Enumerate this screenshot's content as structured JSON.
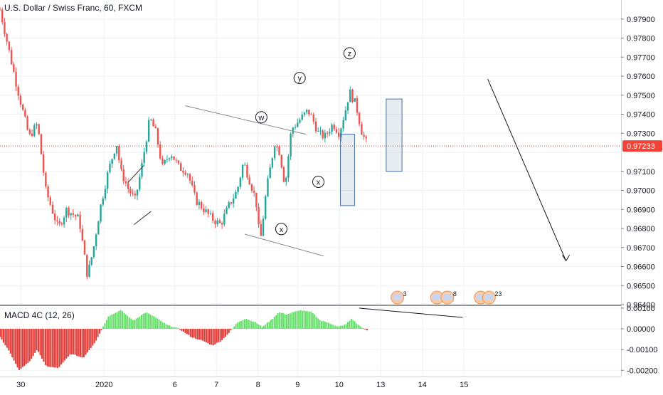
{
  "header": {
    "title": "U.S. Dollar / Swiss Franc, 60, FXCM"
  },
  "macd": {
    "title": "MACD 4C (12, 26)"
  },
  "colors": {
    "up": "#26a69a",
    "down": "#ef5350",
    "macd_pos": "#66e06a",
    "macd_neg": "#e53935",
    "price_badge": "#f44336",
    "grid": "#eef0f3"
  },
  "chart_data": [
    {
      "type": "candlestick",
      "title": "U.S. Dollar / Swiss Franc, 60, FXCM",
      "ylim": [
        0.964,
        0.98
      ],
      "y_ticks": [
        "0.97900",
        "0.97800",
        "0.97700",
        "0.97600",
        "0.97500",
        "0.97400",
        "0.97300",
        "0.97200",
        "0.97100",
        "0.97000",
        "0.96900",
        "0.96800",
        "0.96700",
        "0.96600",
        "0.96500",
        "0.96400"
      ],
      "x_ticks": [
        {
          "label": "30",
          "t": 0.05
        },
        {
          "label": "2020",
          "t": 0.25
        },
        {
          "label": "6",
          "t": 0.42
        },
        {
          "label": "7",
          "t": 0.52
        },
        {
          "label": "8",
          "t": 0.62
        },
        {
          "label": "9",
          "t": 0.715
        },
        {
          "label": "10",
          "t": 0.815
        },
        {
          "label": "13",
          "t": 0.915
        },
        {
          "label": "14",
          "t": 1.015
        },
        {
          "label": "15",
          "t": 1.115
        }
      ],
      "last_price": "0.97233",
      "close_path": [
        [
          0.0,
          0.9795
        ],
        [
          0.02,
          0.9775
        ],
        [
          0.04,
          0.9755
        ],
        [
          0.07,
          0.9728
        ],
        [
          0.09,
          0.9735
        ],
        [
          0.11,
          0.97
        ],
        [
          0.14,
          0.968
        ],
        [
          0.16,
          0.969
        ],
        [
          0.19,
          0.9685
        ],
        [
          0.21,
          0.9655
        ],
        [
          0.225,
          0.967
        ],
        [
          0.24,
          0.969
        ],
        [
          0.26,
          0.971
        ],
        [
          0.28,
          0.9725
        ],
        [
          0.29,
          0.971
        ],
        [
          0.31,
          0.97
        ],
        [
          0.325,
          0.9695
        ],
        [
          0.34,
          0.9712
        ],
        [
          0.36,
          0.9738
        ],
        [
          0.375,
          0.973
        ],
        [
          0.39,
          0.9712
        ],
        [
          0.41,
          0.972
        ],
        [
          0.43,
          0.9712
        ],
        [
          0.45,
          0.971
        ],
        [
          0.47,
          0.9695
        ],
        [
          0.49,
          0.969
        ],
        [
          0.51,
          0.9685
        ],
        [
          0.53,
          0.9682
        ],
        [
          0.55,
          0.9692
        ],
        [
          0.57,
          0.97
        ],
        [
          0.585,
          0.9715
        ],
        [
          0.6,
          0.9705
        ],
        [
          0.615,
          0.9695
        ],
        [
          0.625,
          0.9672
        ],
        [
          0.64,
          0.97
        ],
        [
          0.66,
          0.9725
        ],
        [
          0.672,
          0.972
        ],
        [
          0.685,
          0.9702
        ],
        [
          0.7,
          0.9732
        ],
        [
          0.72,
          0.9737
        ],
        [
          0.74,
          0.9742
        ],
        [
          0.75,
          0.9738
        ],
        [
          0.765,
          0.973
        ],
        [
          0.78,
          0.9728
        ],
        [
          0.8,
          0.9735
        ],
        [
          0.815,
          0.973
        ],
        [
          0.83,
          0.9742
        ],
        [
          0.84,
          0.9752
        ],
        [
          0.855,
          0.9745
        ],
        [
          0.87,
          0.973
        ],
        [
          0.885,
          0.9723
        ]
      ],
      "macd_path": [
        [
          0.0,
          -0.0004
        ],
        [
          0.02,
          -0.001
        ],
        [
          0.045,
          -0.002
        ],
        [
          0.07,
          -0.0016
        ],
        [
          0.09,
          -0.001
        ],
        [
          0.11,
          -0.0018
        ],
        [
          0.14,
          -0.0019
        ],
        [
          0.17,
          -0.0012
        ],
        [
          0.2,
          -0.0014
        ],
        [
          0.23,
          -0.0006
        ],
        [
          0.25,
          0.0002
        ],
        [
          0.26,
          0.0006
        ],
        [
          0.29,
          0.0009
        ],
        [
          0.32,
          0.0004
        ],
        [
          0.35,
          0.0008
        ],
        [
          0.37,
          0.0006
        ],
        [
          0.4,
          0.0002
        ],
        [
          0.43,
          0.0
        ],
        [
          0.46,
          -0.0004
        ],
        [
          0.49,
          -0.0006
        ],
        [
          0.51,
          -0.0008
        ],
        [
          0.53,
          -0.0006
        ],
        [
          0.55,
          -0.0002
        ],
        [
          0.57,
          0.0003
        ],
        [
          0.59,
          0.0005
        ],
        [
          0.615,
          0.0003
        ],
        [
          0.63,
          0.0001
        ],
        [
          0.65,
          0.0004
        ],
        [
          0.67,
          0.0008
        ],
        [
          0.69,
          0.0007
        ],
        [
          0.72,
          0.0009
        ],
        [
          0.75,
          0.0008
        ],
        [
          0.77,
          0.0004
        ],
        [
          0.79,
          0.0003
        ],
        [
          0.81,
          0.0001
        ],
        [
          0.83,
          0.0002
        ],
        [
          0.845,
          0.0005
        ],
        [
          0.86,
          0.0002
        ],
        [
          0.875,
          0.0
        ],
        [
          0.885,
          -0.0001
        ]
      ],
      "macd_ylim": [
        -0.0023,
        0.0011
      ],
      "macd_ticks": [
        "0.00100",
        "0.00000",
        "-0.00100",
        "-0.00200"
      ],
      "wave_labels": [
        {
          "text": "w",
          "t": 0.628,
          "y": 0.97384
        },
        {
          "text": "y",
          "t": 0.72,
          "y": 0.9759
        },
        {
          "text": "z",
          "t": 0.84,
          "y": 0.9772
        },
        {
          "text": "x",
          "t": 0.676,
          "y": 0.96797
        },
        {
          "text": "x",
          "t": 0.765,
          "y": 0.97045
        }
      ],
      "event_badges": [
        {
          "t": 0.955,
          "text": "3"
        },
        {
          "t": 1.05,
          "text": "11"
        },
        {
          "t": 1.075,
          "text": "8"
        },
        {
          "t": 1.155,
          "text": "5"
        },
        {
          "t": 1.175,
          "text": "23"
        }
      ]
    }
  ]
}
